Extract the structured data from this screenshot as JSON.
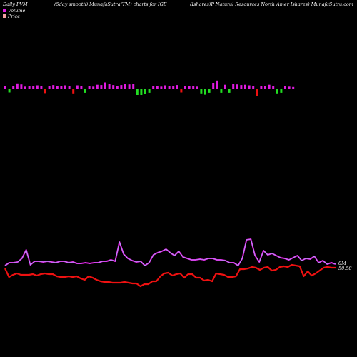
{
  "header": {
    "left": "Daily PVM",
    "center_left": "(5day smooth) MunafaSutra(TM) charts for IGE",
    "right": "(Ishares)P Natural Resources North Amer Ishares) MunafaSutra.com"
  },
  "legend": {
    "volume_label": "Volume",
    "price_label": "Price"
  },
  "end_labels": {
    "volume": "0M",
    "price": "50.58"
  },
  "colors": {
    "background": "#000000",
    "positive_bar": "#e11be1",
    "negative_bar": "#22dd22",
    "red_bar": "#ee1111",
    "volume_line": "#e11be1",
    "price_line": "#ee1111",
    "zero_line": "#ffffff",
    "text": "#ffffff"
  },
  "chart_data": [
    {
      "type": "bar",
      "name": "pvm_histogram",
      "values": [
        {
          "v": 0.9,
          "c": "pos"
        },
        {
          "v": -1.1,
          "c": "neg"
        },
        {
          "v": 0.9,
          "c": "pos"
        },
        {
          "v": 1.7,
          "c": "pos"
        },
        {
          "v": 1.4,
          "c": "pos"
        },
        {
          "v": 0.7,
          "c": "pos"
        },
        {
          "v": 1.0,
          "c": "pos"
        },
        {
          "v": 0.8,
          "c": "pos"
        },
        {
          "v": 1.1,
          "c": "pos"
        },
        {
          "v": 0.8,
          "c": "pos"
        },
        {
          "v": -1.3,
          "c": "red"
        },
        {
          "v": 0.9,
          "c": "pos"
        },
        {
          "v": 1.2,
          "c": "pos"
        },
        {
          "v": 0.8,
          "c": "pos"
        },
        {
          "v": 0.8,
          "c": "pos"
        },
        {
          "v": 1.1,
          "c": "pos"
        },
        {
          "v": 0.9,
          "c": "pos"
        },
        {
          "v": -1.4,
          "c": "red"
        },
        {
          "v": 1.1,
          "c": "pos"
        },
        {
          "v": 0.9,
          "c": "pos"
        },
        {
          "v": -1.2,
          "c": "neg"
        },
        {
          "v": 0.8,
          "c": "pos"
        },
        {
          "v": 0.7,
          "c": "pos"
        },
        {
          "v": 1.3,
          "c": "pos"
        },
        {
          "v": 1.2,
          "c": "pos"
        },
        {
          "v": 2.0,
          "c": "pos"
        },
        {
          "v": 1.5,
          "c": "pos"
        },
        {
          "v": 1.2,
          "c": "pos"
        },
        {
          "v": 1.0,
          "c": "pos"
        },
        {
          "v": 1.2,
          "c": "pos"
        },
        {
          "v": 1.5,
          "c": "pos"
        },
        {
          "v": 1.4,
          "c": "pos"
        },
        {
          "v": 1.5,
          "c": "pos"
        },
        {
          "v": -1.9,
          "c": "neg"
        },
        {
          "v": -1.9,
          "c": "neg"
        },
        {
          "v": -1.6,
          "c": "neg"
        },
        {
          "v": -1.2,
          "c": "neg"
        },
        {
          "v": 0.9,
          "c": "pos"
        },
        {
          "v": 0.9,
          "c": "pos"
        },
        {
          "v": 0.7,
          "c": "pos"
        },
        {
          "v": 1.1,
          "c": "pos"
        },
        {
          "v": 0.9,
          "c": "pos"
        },
        {
          "v": 0.8,
          "c": "pos"
        },
        {
          "v": 1.2,
          "c": "pos"
        },
        {
          "v": -1.1,
          "c": "red"
        },
        {
          "v": 1.0,
          "c": "pos"
        },
        {
          "v": 0.8,
          "c": "pos"
        },
        {
          "v": 0.9,
          "c": "pos"
        },
        {
          "v": 0.7,
          "c": "pos"
        },
        {
          "v": -1.4,
          "c": "neg"
        },
        {
          "v": -1.8,
          "c": "neg"
        },
        {
          "v": -1.2,
          "c": "neg"
        },
        {
          "v": 1.9,
          "c": "pos"
        },
        {
          "v": 2.6,
          "c": "pos"
        },
        {
          "v": -1.2,
          "c": "neg"
        },
        {
          "v": 1.3,
          "c": "pos"
        },
        {
          "v": -1.2,
          "c": "neg"
        },
        {
          "v": 1.5,
          "c": "pos"
        },
        {
          "v": 1.4,
          "c": "pos"
        },
        {
          "v": 1.2,
          "c": "pos"
        },
        {
          "v": 1.3,
          "c": "pos"
        },
        {
          "v": 1.1,
          "c": "pos"
        },
        {
          "v": 1.0,
          "c": "pos"
        },
        {
          "v": -2.3,
          "c": "red"
        },
        {
          "v": 0.8,
          "c": "pos"
        },
        {
          "v": 0.9,
          "c": "pos"
        },
        {
          "v": 1.3,
          "c": "pos"
        },
        {
          "v": 1.0,
          "c": "pos"
        },
        {
          "v": -1.4,
          "c": "neg"
        },
        {
          "v": -1.2,
          "c": "neg"
        },
        {
          "v": 0.9,
          "c": "pos"
        },
        {
          "v": 0.7,
          "c": "pos"
        },
        {
          "v": 0.6,
          "c": "pos"
        }
      ]
    },
    {
      "type": "line",
      "name": "volume_line",
      "values": [
        372,
        368,
        368,
        367,
        362,
        350,
        371,
        366,
        366,
        367,
        366,
        367,
        368,
        366,
        366,
        368,
        367,
        369,
        369,
        368,
        369,
        368,
        368,
        366,
        366,
        364,
        366,
        339,
        356,
        362,
        365,
        367,
        366,
        372,
        368,
        357,
        354,
        352,
        349,
        354,
        358,
        352,
        360,
        362,
        364,
        364,
        363,
        364,
        362,
        362,
        364,
        364,
        365,
        368,
        368,
        372,
        362,
        336,
        335,
        358,
        367,
        351,
        357,
        355,
        358,
        361,
        362,
        364,
        361,
        358,
        365,
        362,
        363,
        359,
        368,
        365,
        370,
        368,
        370
      ]
    },
    {
      "type": "line",
      "name": "price_line",
      "values": [
        376,
        388,
        385,
        383,
        385,
        385,
        385,
        384,
        386,
        384,
        383,
        384,
        384,
        387,
        388,
        388,
        387,
        388,
        387,
        390,
        392,
        387,
        389,
        392,
        394,
        395,
        395,
        396,
        396,
        396,
        395,
        396,
        397,
        397,
        401,
        398,
        398,
        394,
        394,
        387,
        383,
        382,
        386,
        384,
        383,
        389,
        384,
        384,
        389,
        389,
        393,
        392,
        394,
        383,
        384,
        385,
        388,
        388,
        387,
        377,
        377,
        376,
        374,
        375,
        378,
        375,
        374,
        379,
        378,
        374,
        373,
        374,
        371,
        372,
        373,
        387,
        380,
        386,
        383,
        379,
        375,
        374,
        375,
        375
      ]
    }
  ]
}
